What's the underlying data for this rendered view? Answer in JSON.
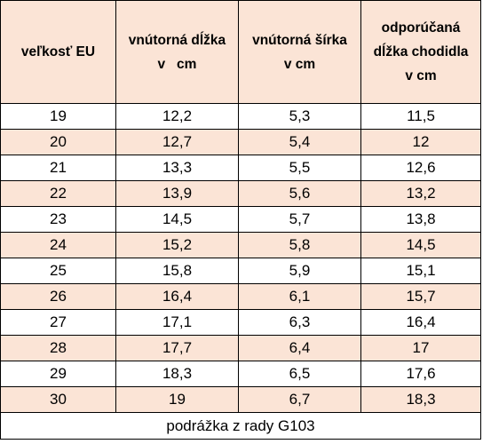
{
  "header": {
    "col1": [
      "veľkosť EU"
    ],
    "col2": [
      "vnútorná dĺžka",
      "v   cm"
    ],
    "col3": [
      "vnútorná šírka",
      "v cm"
    ],
    "col4": [
      "odporúčaná",
      "dĺžka chodidla",
      "v cm"
    ]
  },
  "rows": [
    {
      "size": "19",
      "length": "12,2",
      "width": "5,3",
      "foot": "11,5"
    },
    {
      "size": "20",
      "length": "12,7",
      "width": "5,4",
      "foot": "12"
    },
    {
      "size": "21",
      "length": "13,3",
      "width": "5,5",
      "foot": "12,6"
    },
    {
      "size": "22",
      "length": "13,9",
      "width": "5,6",
      "foot": "13,2"
    },
    {
      "size": "23",
      "length": "14,5",
      "width": "5,7",
      "foot": "13,8"
    },
    {
      "size": "24",
      "length": "15,2",
      "width": "5,8",
      "foot": "14,5"
    },
    {
      "size": "25",
      "length": "15,8",
      "width": "5,9",
      "foot": "15,1"
    },
    {
      "size": "26",
      "length": "16,4",
      "width": "6,1",
      "foot": "15,7"
    },
    {
      "size": "27",
      "length": "17,1",
      "width": "6,3",
      "foot": "16,4"
    },
    {
      "size": "28",
      "length": "17,7",
      "width": "6,4",
      "foot": "17"
    },
    {
      "size": "29",
      "length": "18,3",
      "width": "6,5",
      "foot": "17,6"
    },
    {
      "size": "30",
      "length": "19",
      "width": "6,7",
      "foot": "18,3"
    }
  ],
  "footer": "podrážka z rady G103",
  "colors": {
    "shaded_row": "#fbe4d6",
    "plain_row": "#ffffff",
    "border": "#000000"
  }
}
